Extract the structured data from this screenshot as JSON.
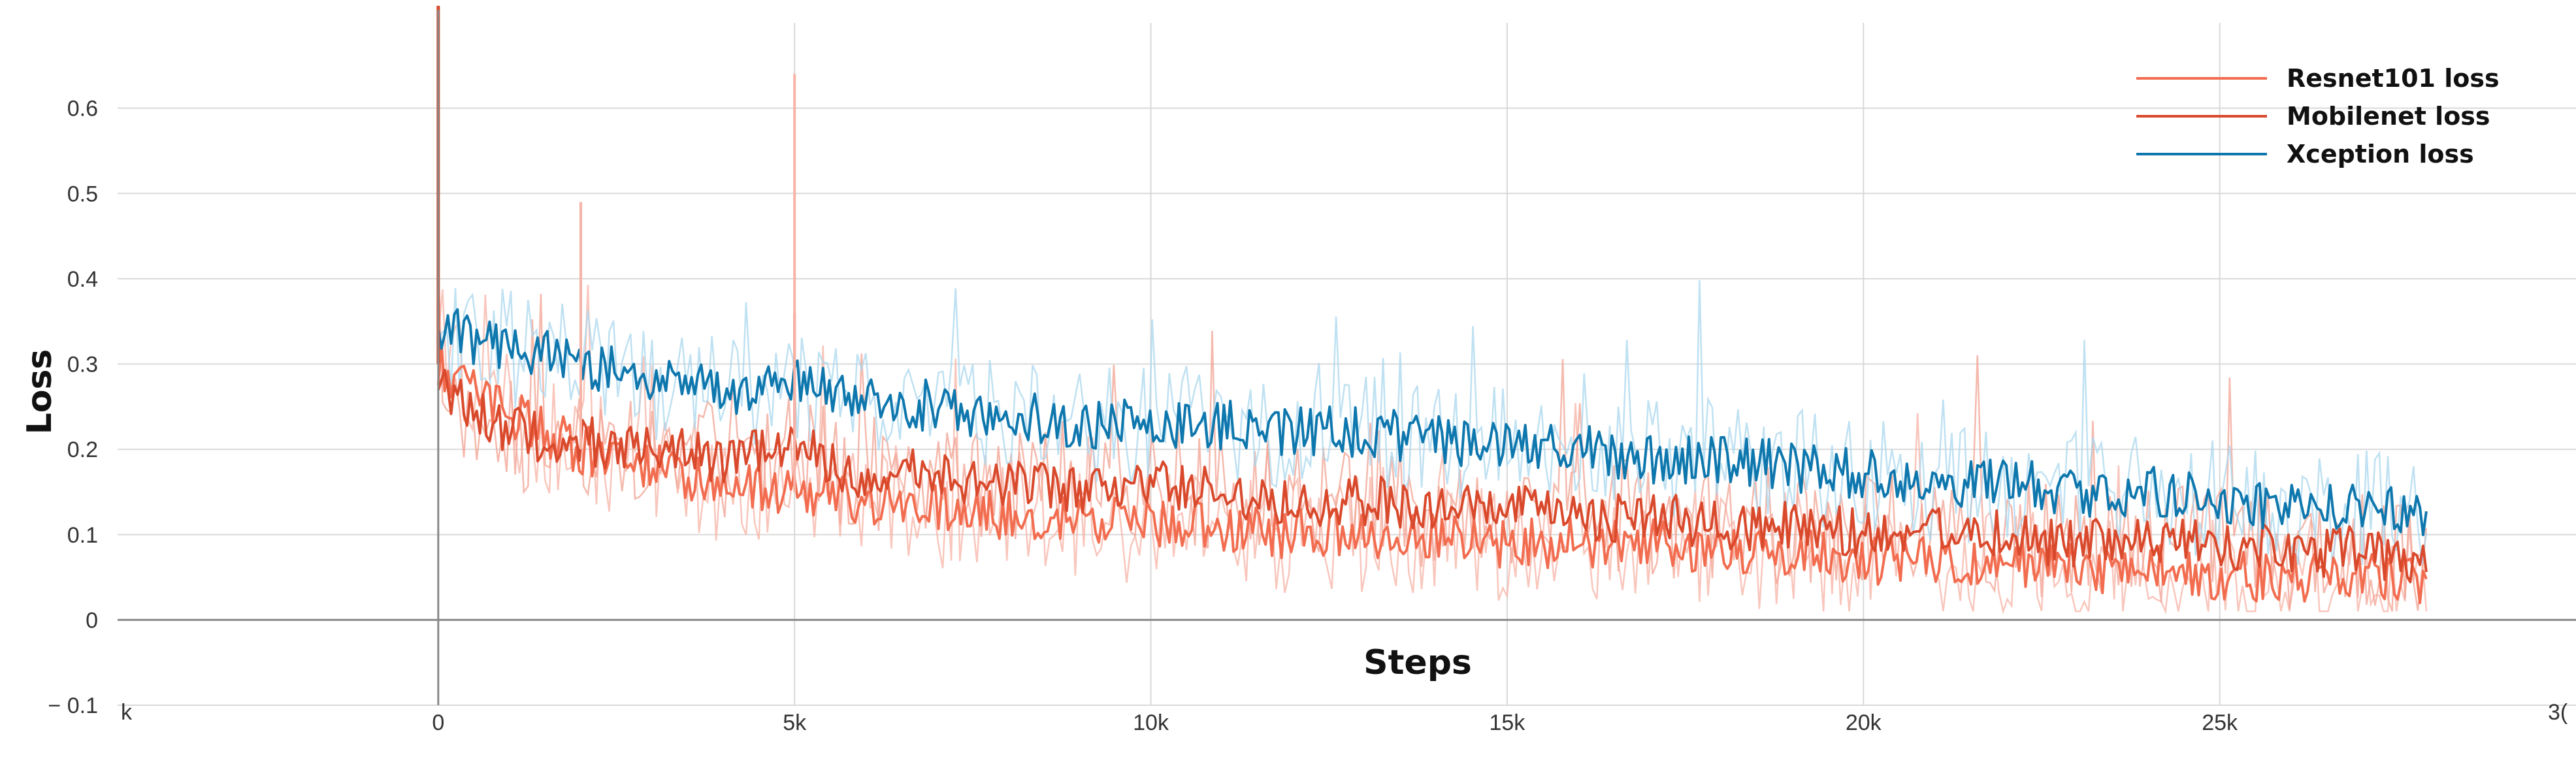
{
  "chart_data": {
    "type": "line",
    "title": "",
    "xlabel": "Steps",
    "ylabel": "Loss",
    "xlim": [
      -4500,
      30000
    ],
    "ylim": [
      -0.1,
      0.7
    ],
    "x_ticks": [
      0,
      5000,
      10000,
      15000,
      20000,
      25000
    ],
    "x_tick_labels": [
      "0",
      "5k",
      "10k",
      "15k",
      "20k",
      "25k"
    ],
    "x_edge_labels": [
      "k",
      "3("
    ],
    "y_ticks": [
      -0.1,
      0,
      0.1,
      0.2,
      0.3,
      0.4,
      0.5,
      0.6
    ],
    "y_tick_labels": [
      "− 0.1",
      "0",
      "0.1",
      "0.2",
      "0.3",
      "0.4",
      "0.5",
      "0.6"
    ],
    "grid": true,
    "legend_position": "top-right",
    "series": [
      {
        "name": "Resnet101 loss",
        "color": "#f26d50",
        "raw_color": "#f7b3a6",
        "x": [
          0,
          1000,
          2000,
          3000,
          4000,
          5000,
          6000,
          7000,
          8000,
          9000,
          10000,
          11000,
          12000,
          13000,
          14000,
          15000,
          16000,
          17000,
          18000,
          19000,
          20000,
          21000,
          22000,
          23000,
          24000,
          25000,
          26000,
          27000,
          27900
        ],
        "values": [
          0.3,
          0.24,
          0.2,
          0.18,
          0.16,
          0.15,
          0.14,
          0.13,
          0.12,
          0.12,
          0.11,
          0.11,
          0.1,
          0.1,
          0.1,
          0.09,
          0.09,
          0.09,
          0.08,
          0.08,
          0.07,
          0.07,
          0.07,
          0.06,
          0.06,
          0.05,
          0.05,
          0.05,
          0.04
        ]
      },
      {
        "name": "Mobilenet loss",
        "color": "#d9492c",
        "raw_color": "#f2a291",
        "x": [
          0,
          1000,
          2000,
          3000,
          4000,
          5000,
          6000,
          7000,
          8000,
          9000,
          10000,
          11000,
          12000,
          13000,
          14000,
          15000,
          16000,
          17000,
          18000,
          19000,
          20000,
          21000,
          22000,
          23000,
          24000,
          25000,
          26000,
          27000,
          27900
        ],
        "values": [
          0.28,
          0.22,
          0.21,
          0.2,
          0.19,
          0.2,
          0.17,
          0.17,
          0.16,
          0.15,
          0.16,
          0.15,
          0.14,
          0.14,
          0.13,
          0.13,
          0.12,
          0.12,
          0.11,
          0.11,
          0.1,
          0.11,
          0.1,
          0.09,
          0.09,
          0.09,
          0.08,
          0.08,
          0.06
        ]
      },
      {
        "name": "Xception loss",
        "color": "#0e77ad",
        "raw_color": "#a9d7ee",
        "x": [
          0,
          1000,
          2000,
          3000,
          4000,
          5000,
          6000,
          7000,
          8000,
          9000,
          10000,
          11000,
          12000,
          13000,
          14000,
          15000,
          16000,
          17000,
          18000,
          19000,
          20000,
          21000,
          22000,
          23000,
          24000,
          25000,
          26000,
          27000,
          27900
        ],
        "values": [
          0.34,
          0.32,
          0.3,
          0.28,
          0.27,
          0.28,
          0.26,
          0.25,
          0.24,
          0.23,
          0.23,
          0.23,
          0.22,
          0.22,
          0.21,
          0.21,
          0.2,
          0.19,
          0.19,
          0.18,
          0.17,
          0.16,
          0.16,
          0.15,
          0.15,
          0.14,
          0.13,
          0.13,
          0.12
        ]
      }
    ],
    "initial_spike": {
      "x": 0,
      "value": 0.72
    },
    "annotations": [
      {
        "series": "Mobilenet loss",
        "x": 5000,
        "value": 0.36
      },
      {
        "series": "Resnet101 loss",
        "x": 5000,
        "value": 0.64
      },
      {
        "series": "Resnet101 loss",
        "x": 2000,
        "value": 0.49
      }
    ]
  }
}
